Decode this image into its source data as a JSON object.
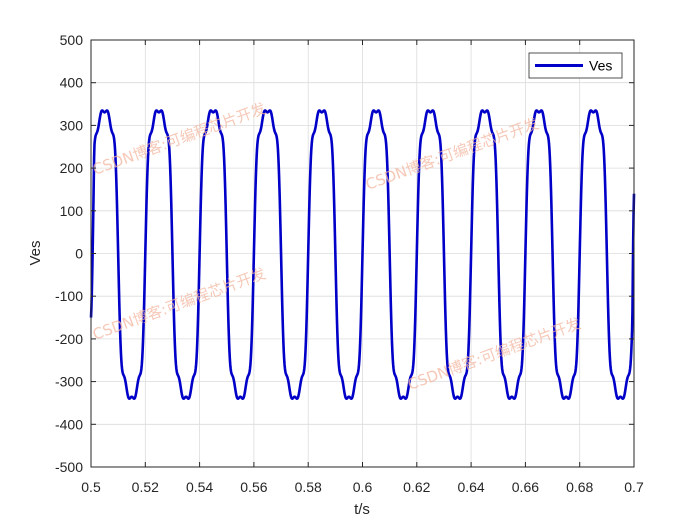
{
  "chart_data": {
    "type": "line",
    "xlabel": "t/s",
    "ylabel": "Ves",
    "xlim": [
      0.5,
      0.7
    ],
    "ylim": [
      -500,
      500
    ],
    "xticks": [
      "0.5",
      "0.52",
      "0.54",
      "0.56",
      "0.58",
      "0.6",
      "0.62",
      "0.64",
      "0.66",
      "0.68",
      "0.7"
    ],
    "yticks": [
      "500",
      "400",
      "300",
      "200",
      "100",
      "0",
      "-100",
      "-200",
      "-300",
      "-400",
      "-500"
    ],
    "grid": true,
    "legend": "top-right",
    "series": [
      {
        "name": "Ves",
        "color": "#0000c8",
        "frequency_hz": 50,
        "x_start": 0.5,
        "x_end": 0.7,
        "y_start": -150,
        "peak": 335,
        "trough": -340,
        "y_end": 140
      }
    ]
  },
  "watermark": {
    "text": "CSDN博客:可编程芯片开发"
  }
}
